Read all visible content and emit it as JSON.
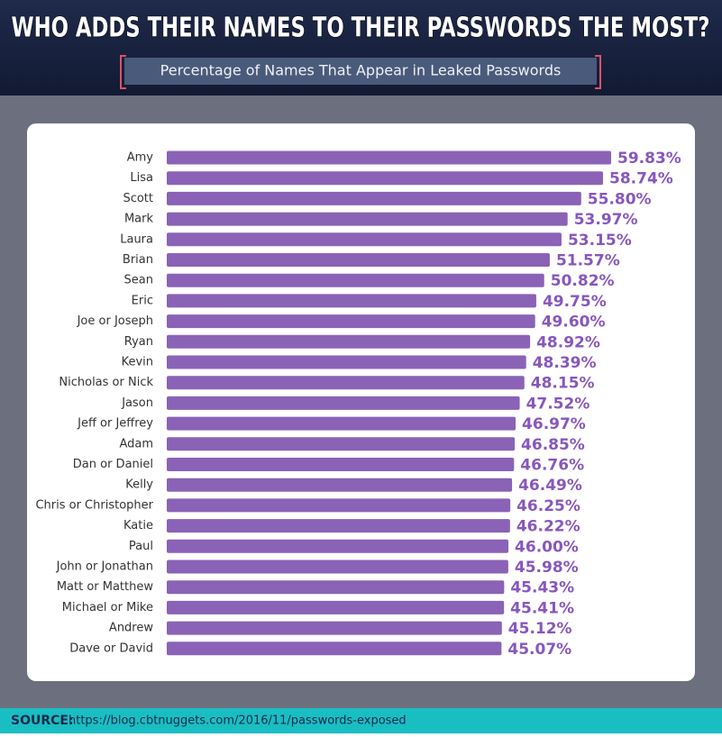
{
  "chart_data": {
    "type": "bar",
    "orientation": "horizontal",
    "title": "WHO ADDS THEIR NAMES TO THEIR PASSWORDS THE MOST?",
    "subtitle": "Percentage of Names That Appear in Leaked Passwords",
    "categories": [
      "Amy",
      "Lisa",
      "Scott",
      "Mark",
      "Laura",
      "Brian",
      "Sean",
      "Eric",
      "Joe or Joseph",
      "Ryan",
      "Kevin",
      "Nicholas or Nick",
      "Jason",
      "Jeff or Jeffrey",
      "Adam",
      "Dan or Daniel",
      "Kelly",
      "Chris or Christopher",
      "Katie",
      "Paul",
      "John or Jonathan",
      "Matt or Matthew",
      "Michael or Mike",
      "Andrew",
      "Dave or David"
    ],
    "values": [
      59.83,
      58.74,
      55.8,
      53.97,
      53.15,
      51.57,
      50.82,
      49.75,
      49.6,
      48.92,
      48.39,
      48.15,
      47.52,
      46.97,
      46.85,
      46.76,
      46.49,
      46.25,
      46.22,
      46.0,
      45.98,
      45.43,
      45.41,
      45.12,
      45.07
    ],
    "value_labels": [
      "59.83%",
      "58.74%",
      "55.80%",
      "53.97%",
      "53.15%",
      "51.57%",
      "50.82%",
      "49.75%",
      "49.60%",
      "48.92%",
      "48.39%",
      "48.15%",
      "47.52%",
      "46.97%",
      "46.85%",
      "46.76%",
      "46.49%",
      "46.25%",
      "46.22%",
      "46.00%",
      "45.98%",
      "45.43%",
      "45.41%",
      "45.12%",
      "45.07%"
    ],
    "color": "#8a62b6",
    "label_color": "#8757bd",
    "source_label": "SOURCE:",
    "source": "https://blog.cbtnuggets.com/2016/11/passwords-exposed"
  }
}
